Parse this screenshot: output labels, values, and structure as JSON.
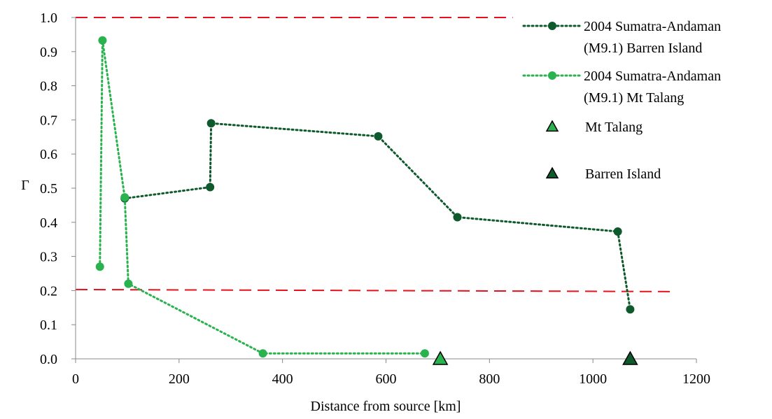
{
  "chart_data": {
    "type": "scatter",
    "xlabel": "Distance from source [km]",
    "ylabel": "Γ",
    "xlim": [
      0,
      1200
    ],
    "ylim": [
      0,
      1.0
    ],
    "x_ticks": [
      0,
      200,
      400,
      600,
      800,
      1000,
      1200
    ],
    "y_ticks": [
      0.0,
      0.1,
      0.2,
      0.3,
      0.4,
      0.5,
      0.6,
      0.7,
      0.8,
      0.9,
      1.0
    ],
    "y_tick_labels": [
      "0.0",
      "0.1",
      "0.2",
      "0.3",
      "0.4",
      "0.5",
      "0.6",
      "0.7",
      "0.8",
      "0.9",
      "1.0"
    ],
    "grid": false,
    "legend_position": "top-right",
    "series": [
      {
        "name": "2004 Sumatra-Andaman (M9.1) Barren Island",
        "legend_lines": [
          "2004 Sumatra-Andaman",
          "(M9.1) Barren Island"
        ],
        "color": "#0f5a2c",
        "style": "dotted-line-markers",
        "points": [
          {
            "x": 95,
            "y": 0.47
          },
          {
            "x": 260,
            "y": 0.503
          },
          {
            "x": 262,
            "y": 0.69
          },
          {
            "x": 585,
            "y": 0.652
          },
          {
            "x": 738,
            "y": 0.415
          },
          {
            "x": 1048,
            "y": 0.373
          },
          {
            "x": 1072,
            "y": 0.145
          }
        ]
      },
      {
        "name": "2004 Sumatra-Andaman (M9.1) Mt Talang",
        "legend_lines": [
          "2004 Sumatra-Andaman",
          "(M9.1) Mt Talang"
        ],
        "color": "#2ab24f",
        "style": "dotted-line-markers",
        "points": [
          {
            "x": 47,
            "y": 0.27
          },
          {
            "x": 52,
            "y": 0.933
          },
          {
            "x": 95,
            "y": 0.473
          },
          {
            "x": 102,
            "y": 0.22
          },
          {
            "x": 362,
            "y": 0.016
          },
          {
            "x": 675,
            "y": 0.016
          }
        ]
      },
      {
        "name": "Mt Talang",
        "legend_lines": [
          "Mt Talang"
        ],
        "color": "#2ab24f",
        "style": "triangle",
        "points": [
          {
            "x": 705,
            "y": 0.0
          }
        ]
      },
      {
        "name": "Barren Island",
        "legend_lines": [
          "Barren Island"
        ],
        "color": "#0f5a2c",
        "style": "triangle",
        "points": [
          {
            "x": 1072,
            "y": 0.0
          }
        ]
      }
    ],
    "reference_lines": [
      {
        "x1": 0,
        "y1": 1.0,
        "x2": 845,
        "y2": 1.0,
        "color": "#e8101a"
      },
      {
        "x1": 0,
        "y1": 0.203,
        "x2": 1160,
        "y2": 0.197,
        "color": "#e8101a"
      }
    ]
  }
}
